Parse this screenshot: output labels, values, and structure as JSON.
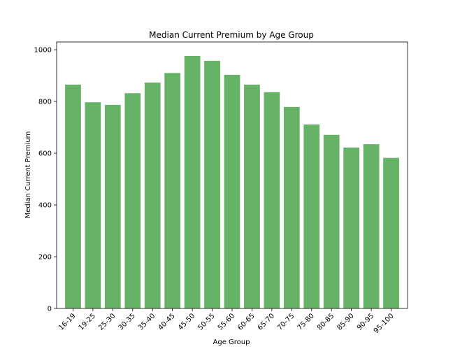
{
  "chart_data": {
    "type": "bar",
    "title": "Median Current Premium by Age Group",
    "xlabel": "Age Group",
    "ylabel": "Median Current Premium",
    "categories": [
      "16-19",
      "19-25",
      "25-30",
      "30-35",
      "35-40",
      "40-45",
      "45-50",
      "50-55",
      "55-60",
      "60-65",
      "65-70",
      "70-75",
      "75-80",
      "80-85",
      "85-90",
      "90-95",
      "95-100"
    ],
    "values": [
      865,
      797,
      787,
      832,
      873,
      910,
      976,
      957,
      903,
      865,
      836,
      779,
      711,
      671,
      622,
      635,
      582
    ],
    "ylim": [
      0,
      1030
    ],
    "yticks": [
      0,
      200,
      400,
      600,
      800,
      1000
    ],
    "grid": false,
    "legend": "none",
    "bar_color": "#66b266",
    "bar_edge_color": "#5aa05a"
  }
}
